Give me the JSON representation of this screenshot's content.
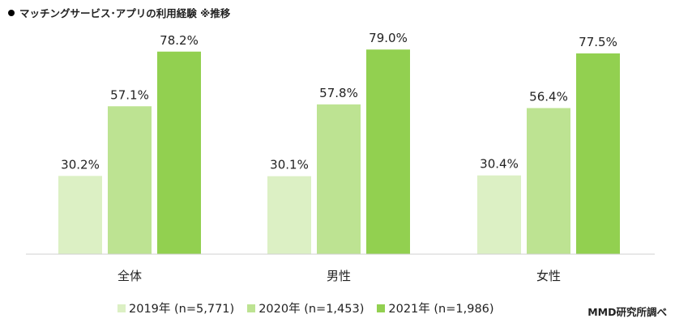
{
  "title": "マッチングサービス･アプリの利用経験 ※推移",
  "source": "MMD研究所調べ",
  "chart_data": {
    "type": "bar",
    "categories": [
      "全体",
      "男性",
      "女性"
    ],
    "series": [
      {
        "name": "2019年 (n=5,771)",
        "color": "#dcf0c4",
        "values": [
          30.2,
          30.1,
          30.4
        ],
        "labels": [
          "30.2%",
          "30.1%",
          "30.4%"
        ]
      },
      {
        "name": "2020年 (n=1,453)",
        "color": "#bde392",
        "values": [
          57.1,
          57.8,
          56.4
        ],
        "labels": [
          "57.1%",
          "57.8%",
          "56.4%"
        ]
      },
      {
        "name": "2021年 (n=1,986)",
        "color": "#92d050",
        "values": [
          78.2,
          79.0,
          77.5
        ],
        "labels": [
          "78.2%",
          "79.0%",
          "77.5%"
        ]
      }
    ],
    "ylim": [
      0,
      100
    ],
    "legend_position": "bottom",
    "grid": false
  }
}
